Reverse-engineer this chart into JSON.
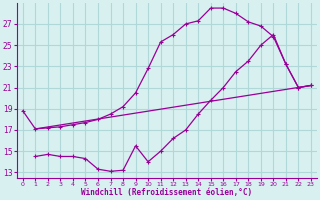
{
  "xlabel": "Windchill (Refroidissement éolien,°C)",
  "bg_color": "#d8f0f0",
  "grid_color": "#b0d8d8",
  "line_color": "#990099",
  "line1_x": [
    0,
    1,
    2,
    3,
    4,
    5,
    6,
    7,
    8,
    9,
    10,
    11,
    12,
    13,
    14,
    15,
    16,
    17,
    18,
    19,
    20,
    21,
    22,
    23
  ],
  "line1_y": [
    18.8,
    17.1,
    17.2,
    17.3,
    17.5,
    17.7,
    18.0,
    18.5,
    19.2,
    20.5,
    22.8,
    25.3,
    26.0,
    27.0,
    27.3,
    28.5,
    28.5,
    28.0,
    27.2,
    26.8,
    25.8,
    23.2,
    21.0,
    21.2
  ],
  "line2_x": [
    1,
    2,
    3,
    4,
    5,
    6,
    7,
    8,
    9,
    10,
    11,
    12,
    13,
    14,
    15,
    16,
    17,
    18,
    19,
    20,
    21,
    22,
    23
  ],
  "line2_y": [
    14.5,
    14.7,
    14.5,
    14.5,
    14.3,
    13.3,
    13.1,
    13.2,
    15.5,
    14.0,
    15.0,
    16.2,
    17.0,
    18.5,
    19.8,
    21.0,
    22.5,
    23.5,
    25.0,
    26.0,
    23.2,
    21.0,
    21.2
  ],
  "line3_x": [
    1,
    23
  ],
  "line3_y": [
    17.1,
    21.2
  ],
  "xlim": [
    -0.5,
    23.5
  ],
  "ylim": [
    12.5,
    29.0
  ],
  "yticks": [
    13,
    15,
    17,
    19,
    21,
    23,
    25,
    27
  ],
  "xticks": [
    0,
    1,
    2,
    3,
    4,
    5,
    6,
    7,
    8,
    9,
    10,
    11,
    12,
    13,
    14,
    15,
    16,
    17,
    18,
    19,
    20,
    21,
    22,
    23
  ],
  "xtick_fontsize": 4.5,
  "ytick_fontsize": 5.5
}
